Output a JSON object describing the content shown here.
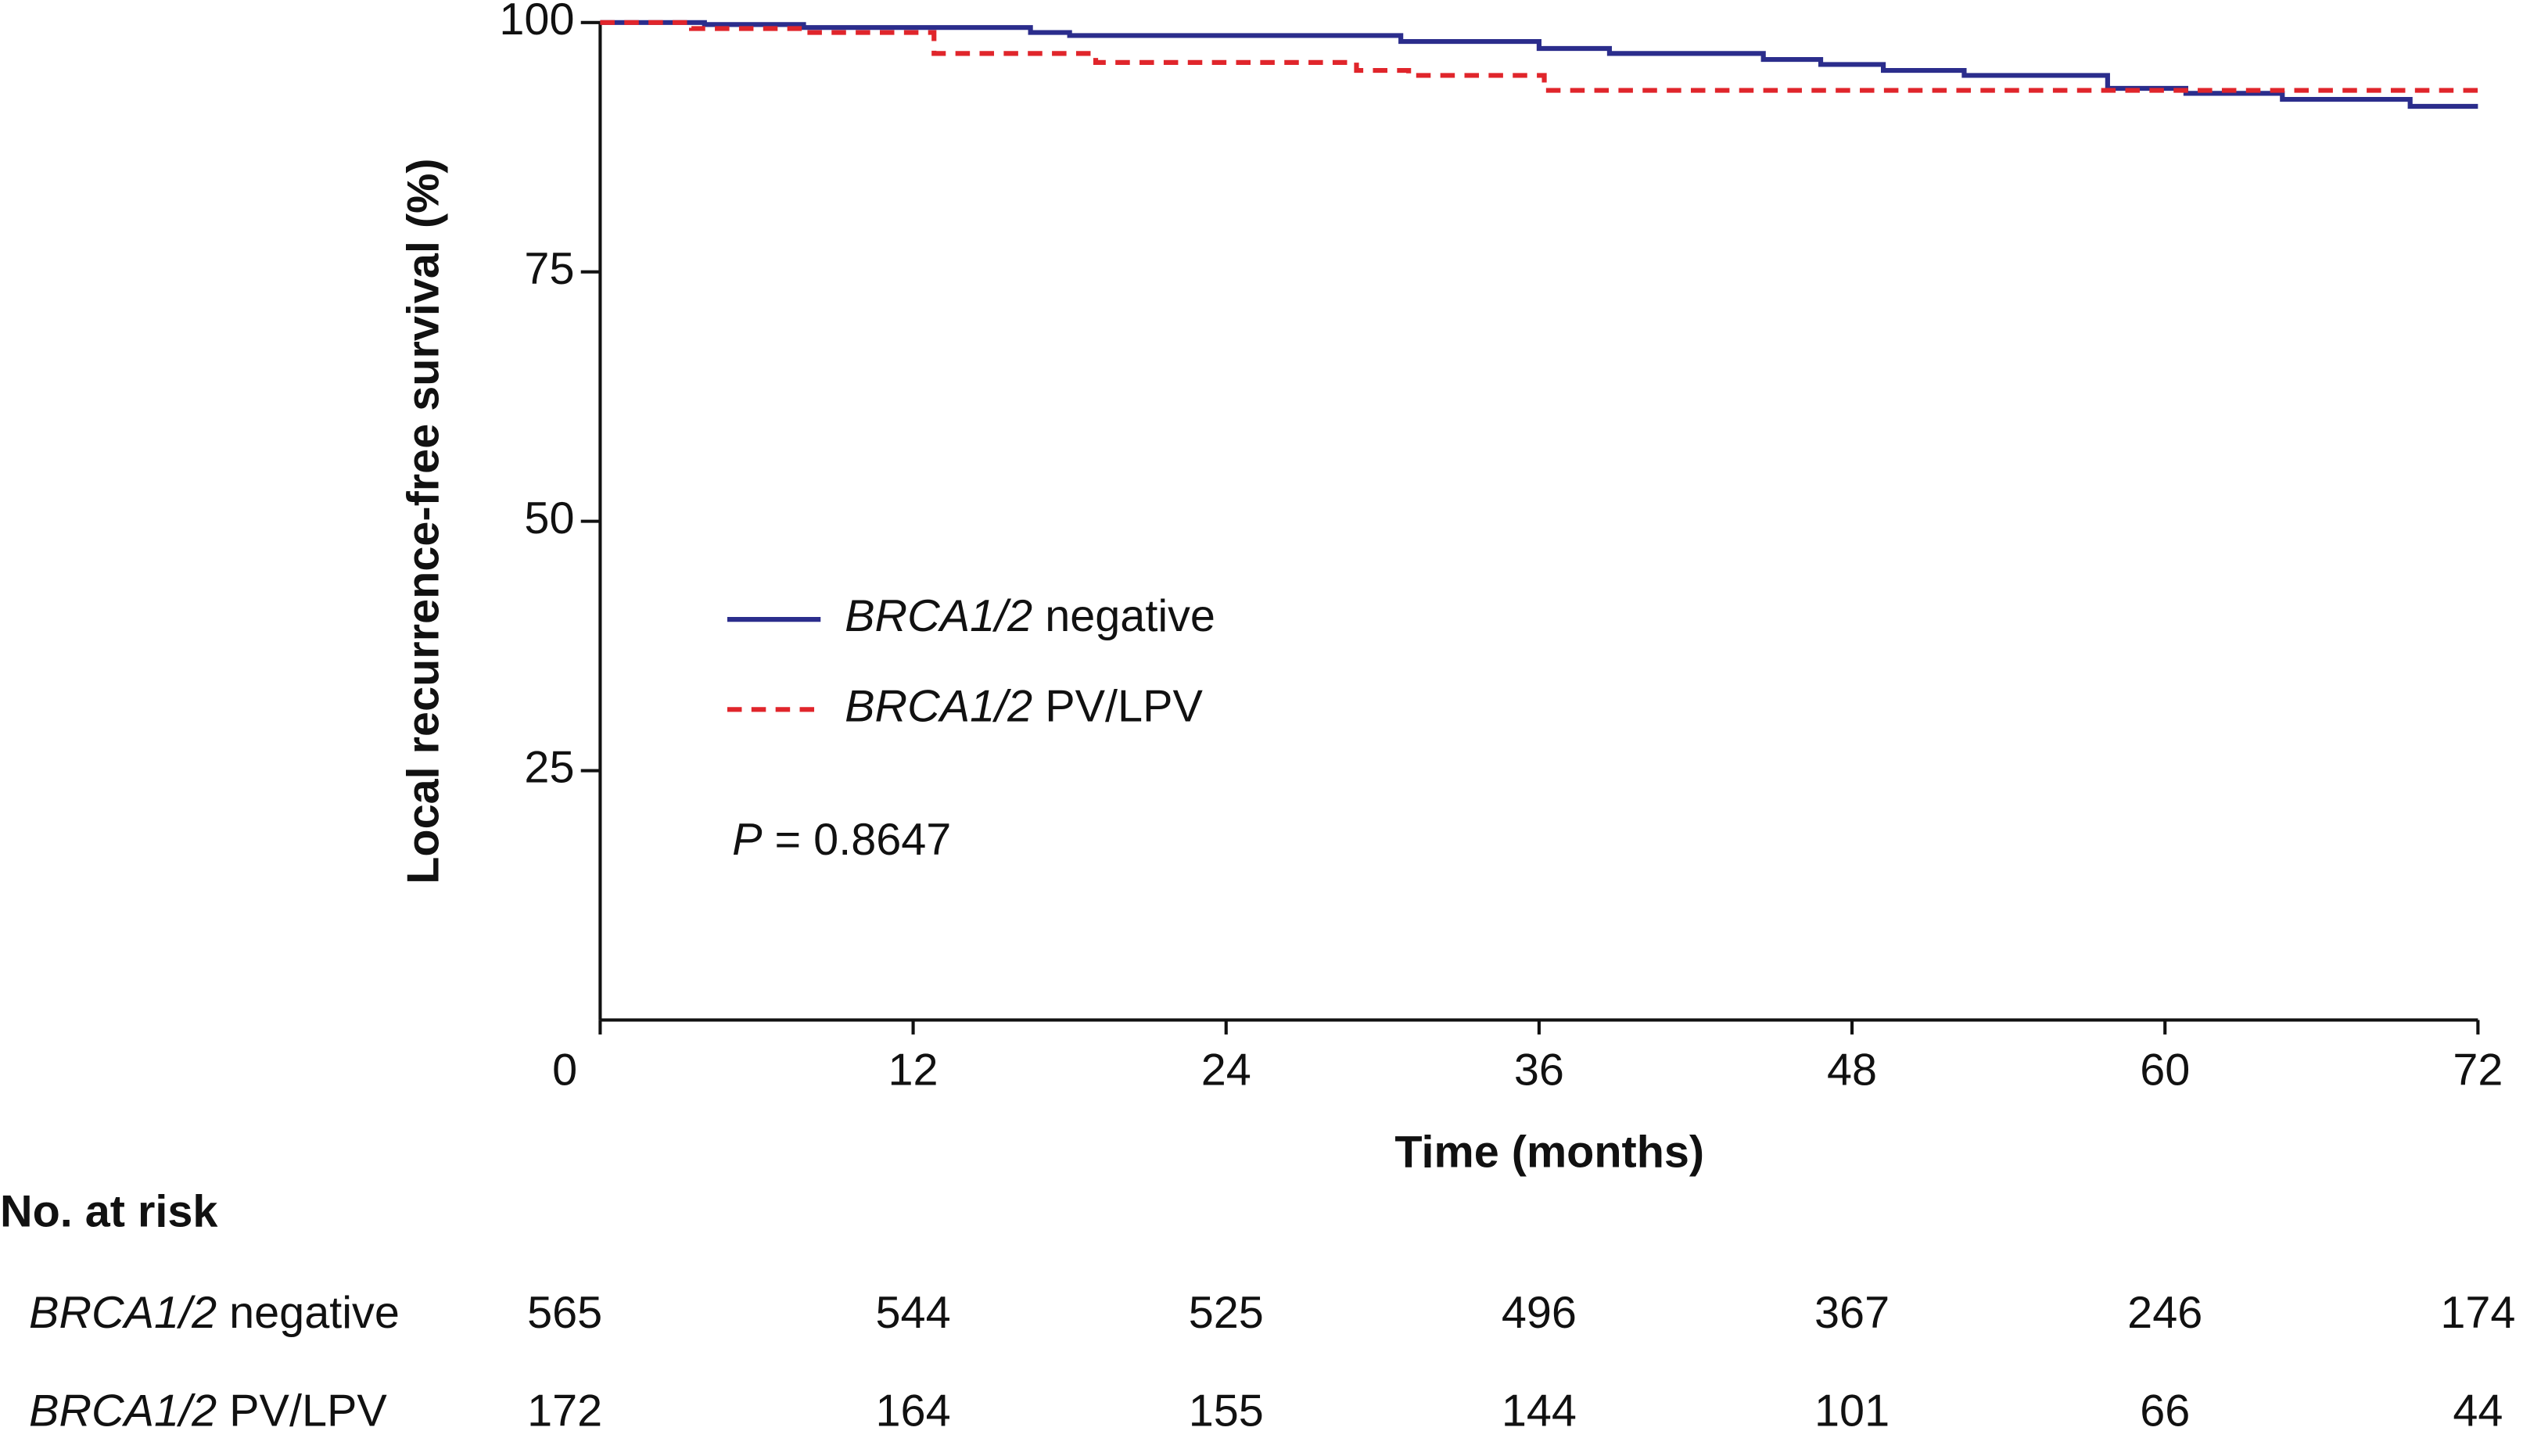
{
  "chart_data": {
    "type": "line",
    "ylabel": "Local recurrence-free survival (%)",
    "xlabel": "Time (months)",
    "xlim": [
      0,
      72
    ],
    "ylim": [
      0,
      100
    ],
    "xticks": [
      0,
      12,
      24,
      36,
      48,
      60,
      72
    ],
    "yticks": [
      25,
      50,
      75,
      100
    ],
    "annotation": "P = 0.8647",
    "series": [
      {
        "name": "BRCA1/2 negative",
        "color": "#2b2d8c",
        "dash": false,
        "x": [
          0,
          4,
          4,
          7.8,
          7.8,
          16.5,
          16.5,
          18,
          18,
          30.7,
          30.7,
          36,
          36,
          38.7,
          38.7,
          44.6,
          44.6,
          46.8,
          46.8,
          49.2,
          49.2,
          52.3,
          52.3,
          57.8,
          57.8,
          60.8,
          60.8,
          64.5,
          64.5,
          69.4,
          69.4,
          72
        ],
        "values": [
          100,
          100,
          99.8,
          99.8,
          99.5,
          99.5,
          99.0,
          99.0,
          98.7,
          98.7,
          98.1,
          98.1,
          97.4,
          97.4,
          96.9,
          96.9,
          96.3,
          96.3,
          95.8,
          95.8,
          95.2,
          95.2,
          94.7,
          94.7,
          93.4,
          93.4,
          92.9,
          92.9,
          92.3,
          92.3,
          91.6,
          91.6
        ]
      },
      {
        "name": "BRCA1/2 PV/LPV",
        "color": "#e0252b",
        "dash": true,
        "x": [
          0,
          3.5,
          3.5,
          7.8,
          7.8,
          12.8,
          12.8,
          19,
          19,
          29,
          29,
          31,
          31,
          36.2,
          36.2,
          72
        ],
        "values": [
          100,
          100,
          99.4,
          99.4,
          99.0,
          99.0,
          96.9,
          96.9,
          96.0,
          96.0,
          95.2,
          95.2,
          94.7,
          94.7,
          93.2,
          93.2
        ]
      }
    ],
    "risk_table": {
      "title": "No. at risk",
      "rows": [
        {
          "name": "BRCA1/2 negative",
          "values": [
            565,
            544,
            525,
            496,
            367,
            246,
            174
          ]
        },
        {
          "name": "BRCA1/2 PV/LPV",
          "values": [
            172,
            164,
            155,
            144,
            101,
            66,
            44
          ]
        }
      ]
    }
  }
}
